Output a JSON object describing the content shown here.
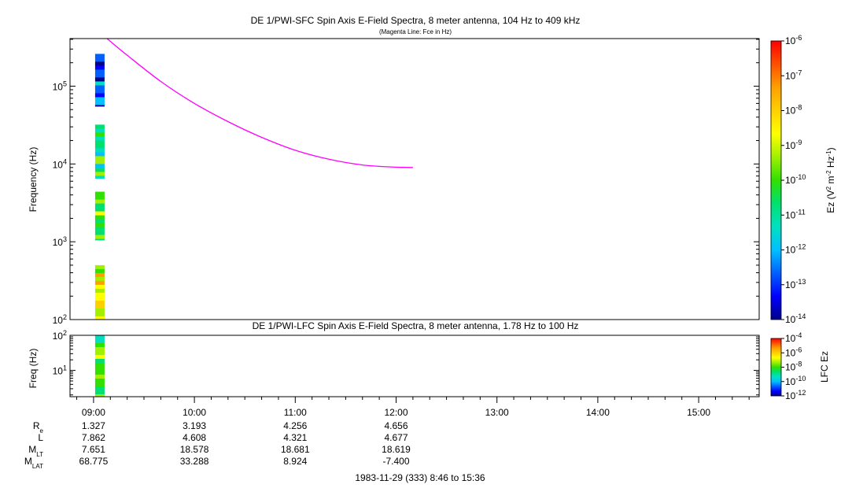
{
  "colors": {
    "fce_line": "#ff00ff",
    "colorbar": [
      "#00008b",
      "#0000ff",
      "#0060ff",
      "#00c0ff",
      "#00e0c0",
      "#00e070",
      "#30e000",
      "#a0f000",
      "#ffff00",
      "#ffd000",
      "#ffa000",
      "#ff5000",
      "#ff0000"
    ]
  },
  "chart_data": [
    {
      "type": "heatmap",
      "title": "DE 1/PWI-SFC  Spin Axis E-Field Spectra, 8 meter antenna, 104 Hz to 409 kHz",
      "subtitle": "(Magenta Line: Fce in Hz)",
      "ylabel": "Frequency (Hz)",
      "yscale": "log",
      "ylim": [
        100,
        409000
      ],
      "y_ticks": [
        {
          "value": 100,
          "base": "10",
          "exp": "2"
        },
        {
          "value": 1000,
          "base": "10",
          "exp": "3"
        },
        {
          "value": 10000,
          "base": "10",
          "exp": "4"
        },
        {
          "value": 100000,
          "base": "10",
          "exp": "5"
        }
      ],
      "colorbar": {
        "label_main": "Ez (V",
        "label_sup1": "2",
        "label_mid": " m",
        "label_sup2": "-2",
        "label_mid2": " Hz",
        "label_sup3": "-1",
        "label_end": ")",
        "scale": "log",
        "range": [
          1e-14,
          1e-06
        ],
        "ticks": [
          {
            "base": "10",
            "exp": "-6"
          },
          {
            "base": "10",
            "exp": "-7"
          },
          {
            "base": "10",
            "exp": "-8"
          },
          {
            "base": "10",
            "exp": "-9"
          },
          {
            "base": "10",
            "exp": "-10"
          },
          {
            "base": "10",
            "exp": "-11"
          },
          {
            "base": "10",
            "exp": "-12"
          },
          {
            "base": "10",
            "exp": "-13"
          },
          {
            "base": "10",
            "exp": "-14"
          }
        ]
      },
      "data_bands": [
        {
          "time": "09:00",
          "f_low": 55000,
          "f_high": 260000,
          "dominant_level": "1e-13"
        },
        {
          "time": "09:00",
          "f_low": 6500,
          "f_high": 32000,
          "dominant_level": "1e-11"
        },
        {
          "time": "09:00",
          "f_low": 1050,
          "f_high": 4400,
          "dominant_level": "1e-10"
        },
        {
          "time": "09:00",
          "f_low": 100,
          "f_high": 500,
          "dominant_level": "1e-9"
        }
      ],
      "series": [
        {
          "name": "Fce in Hz",
          "x": [
            "09:08",
            "09:20",
            "09:40",
            "10:00",
            "10:20",
            "10:40",
            "11:00",
            "11:20",
            "11:40",
            "12:00",
            "12:10"
          ],
          "y": [
            409000,
            250000,
            115000,
            60000,
            35000,
            22000,
            15000,
            11500,
            9700,
            9100,
            9000
          ]
        }
      ]
    },
    {
      "type": "heatmap",
      "title": "DE 1/PWI-LFC  Spin Axis E-Field Spectra, 8 meter antenna, 1.78 Hz to 100 Hz",
      "ylabel": "Freq (Hz)",
      "yscale": "log",
      "ylim": [
        1.78,
        100
      ],
      "y_ticks": [
        {
          "value": 10,
          "base": "10",
          "exp": "1"
        },
        {
          "value": 100,
          "base": "10",
          "exp": "2"
        }
      ],
      "colorbar": {
        "label": "LFC Ez",
        "scale": "log",
        "range": [
          1e-12,
          0.0001
        ],
        "ticks": [
          {
            "base": "10",
            "exp": "-4"
          },
          {
            "base": "10",
            "exp": "-6"
          },
          {
            "base": "10",
            "exp": "-8"
          },
          {
            "base": "10",
            "exp": "-10"
          },
          {
            "base": "10",
            "exp": "-12"
          }
        ]
      },
      "data_bands": [
        {
          "time": "09:00",
          "f_low": 1.78,
          "f_high": 100,
          "dominant_level": "1e-8"
        }
      ]
    }
  ],
  "time_axis": {
    "ticks": [
      "09:00",
      "10:00",
      "11:00",
      "12:00",
      "13:00",
      "14:00",
      "15:00"
    ],
    "range_label": "1983-11-29 (333) 8:46 to 15:36"
  },
  "ephemeris": {
    "rows": [
      {
        "label": "R",
        "sub": "e",
        "values": [
          "1.327",
          "3.193",
          "4.256",
          "4.656"
        ]
      },
      {
        "label": "L",
        "sub": "",
        "values": [
          "7.862",
          "4.608",
          "4.321",
          "4.677"
        ]
      },
      {
        "label": "M",
        "sub": "LT",
        "values": [
          "7.651",
          "18.578",
          "18.681",
          "18.619"
        ]
      },
      {
        "label": "M",
        "sub": "LAT",
        "values": [
          "68.775",
          "33.288",
          "8.924",
          "-7.400"
        ]
      }
    ]
  }
}
